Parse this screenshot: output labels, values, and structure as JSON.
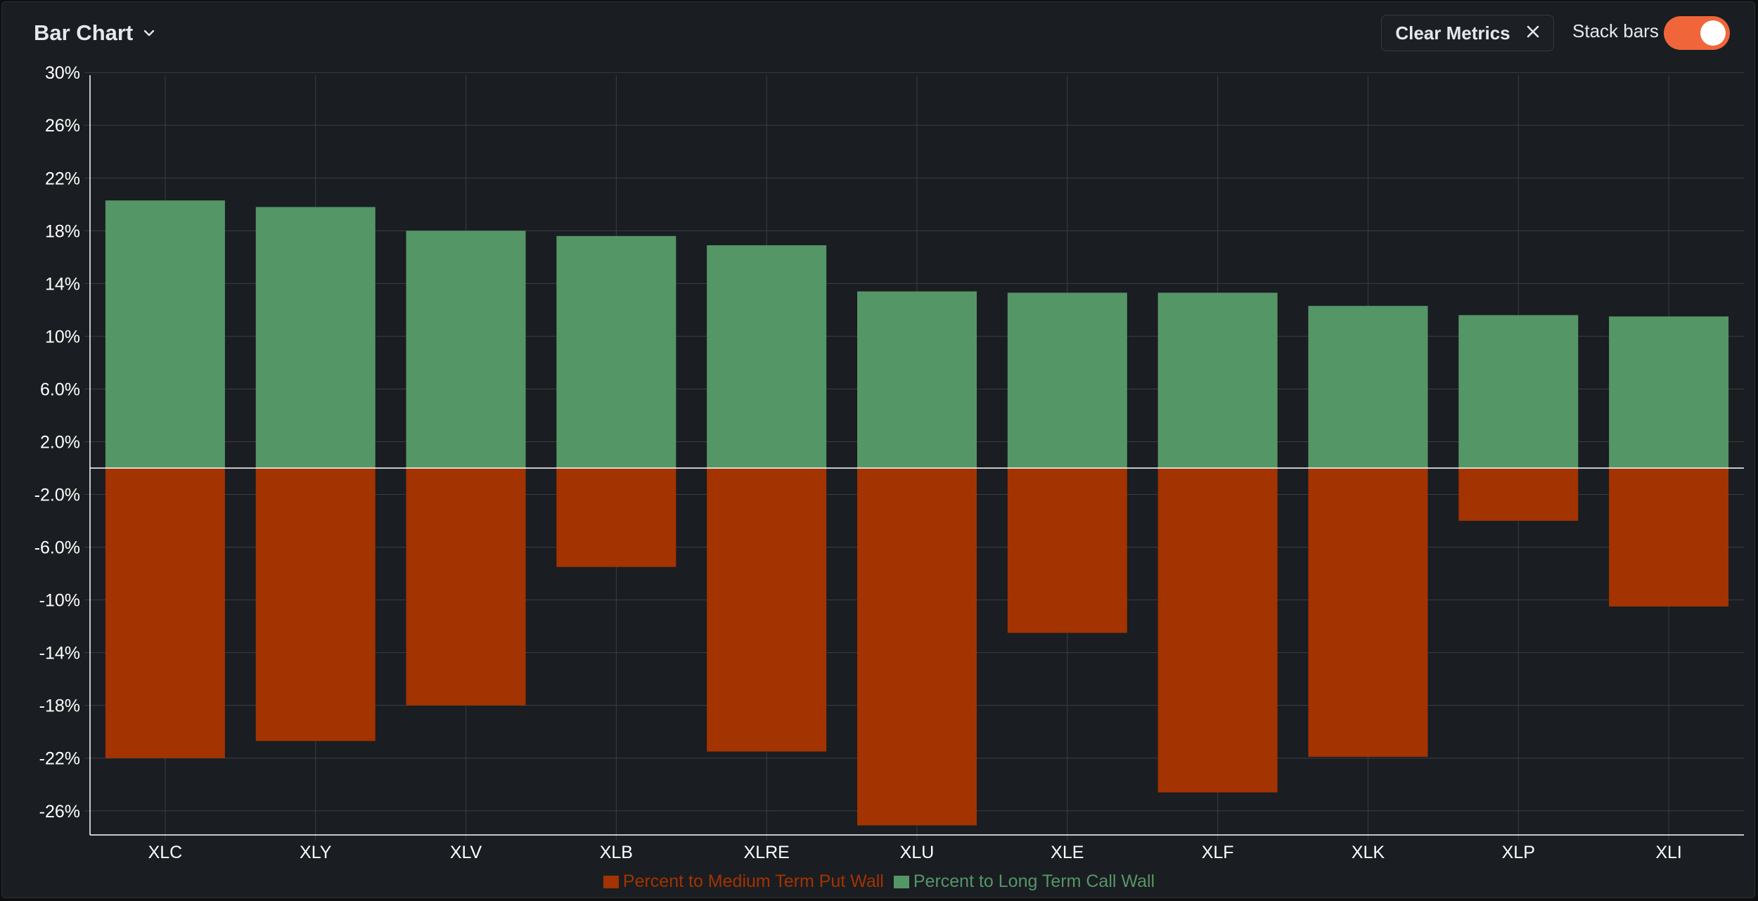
{
  "header": {
    "title": "Bar Chart",
    "clear_label": "Clear Metrics",
    "stack_label": "Stack bars",
    "stack_enabled": true
  },
  "colors": {
    "put": "#a33300",
    "call": "#559667",
    "toggle_on": "#f0663a",
    "background": "#1a1d21",
    "grid": "#3a3e44",
    "axis": "#ffffff",
    "text": "#ffffff"
  },
  "chart_data": {
    "type": "bar",
    "stacked": true,
    "categories": [
      "XLC",
      "XLY",
      "XLV",
      "XLB",
      "XLRE",
      "XLU",
      "XLE",
      "XLF",
      "XLK",
      "XLP",
      "XLI"
    ],
    "series": [
      {
        "name": "Percent to Medium Term Put Wall",
        "color": "#a33300",
        "values": [
          -22.0,
          -20.7,
          -18.0,
          -7.5,
          -21.5,
          -27.1,
          -12.5,
          -24.6,
          -21.9,
          -4.0,
          -10.5
        ]
      },
      {
        "name": "Percent to Long Term Call Wall",
        "color": "#559667",
        "values": [
          20.3,
          19.8,
          18.0,
          17.6,
          16.9,
          13.4,
          13.3,
          13.3,
          12.3,
          11.6,
          11.5
        ]
      }
    ],
    "y_ticks": [
      30,
      26,
      22,
      18,
      14,
      10,
      6,
      2,
      -2,
      -6,
      -10,
      -14,
      -18,
      -22,
      -26
    ],
    "y_tick_labels": [
      "30%",
      "26%",
      "22%",
      "18%",
      "14%",
      "10%",
      "6.0%",
      "2.0%",
      "-2.0%",
      "-6.0%",
      "-10%",
      "-14%",
      "-18%",
      "-22%",
      "-26%"
    ],
    "ylim": [
      -28,
      30
    ],
    "grid": true,
    "legend_position": "bottom-center"
  }
}
